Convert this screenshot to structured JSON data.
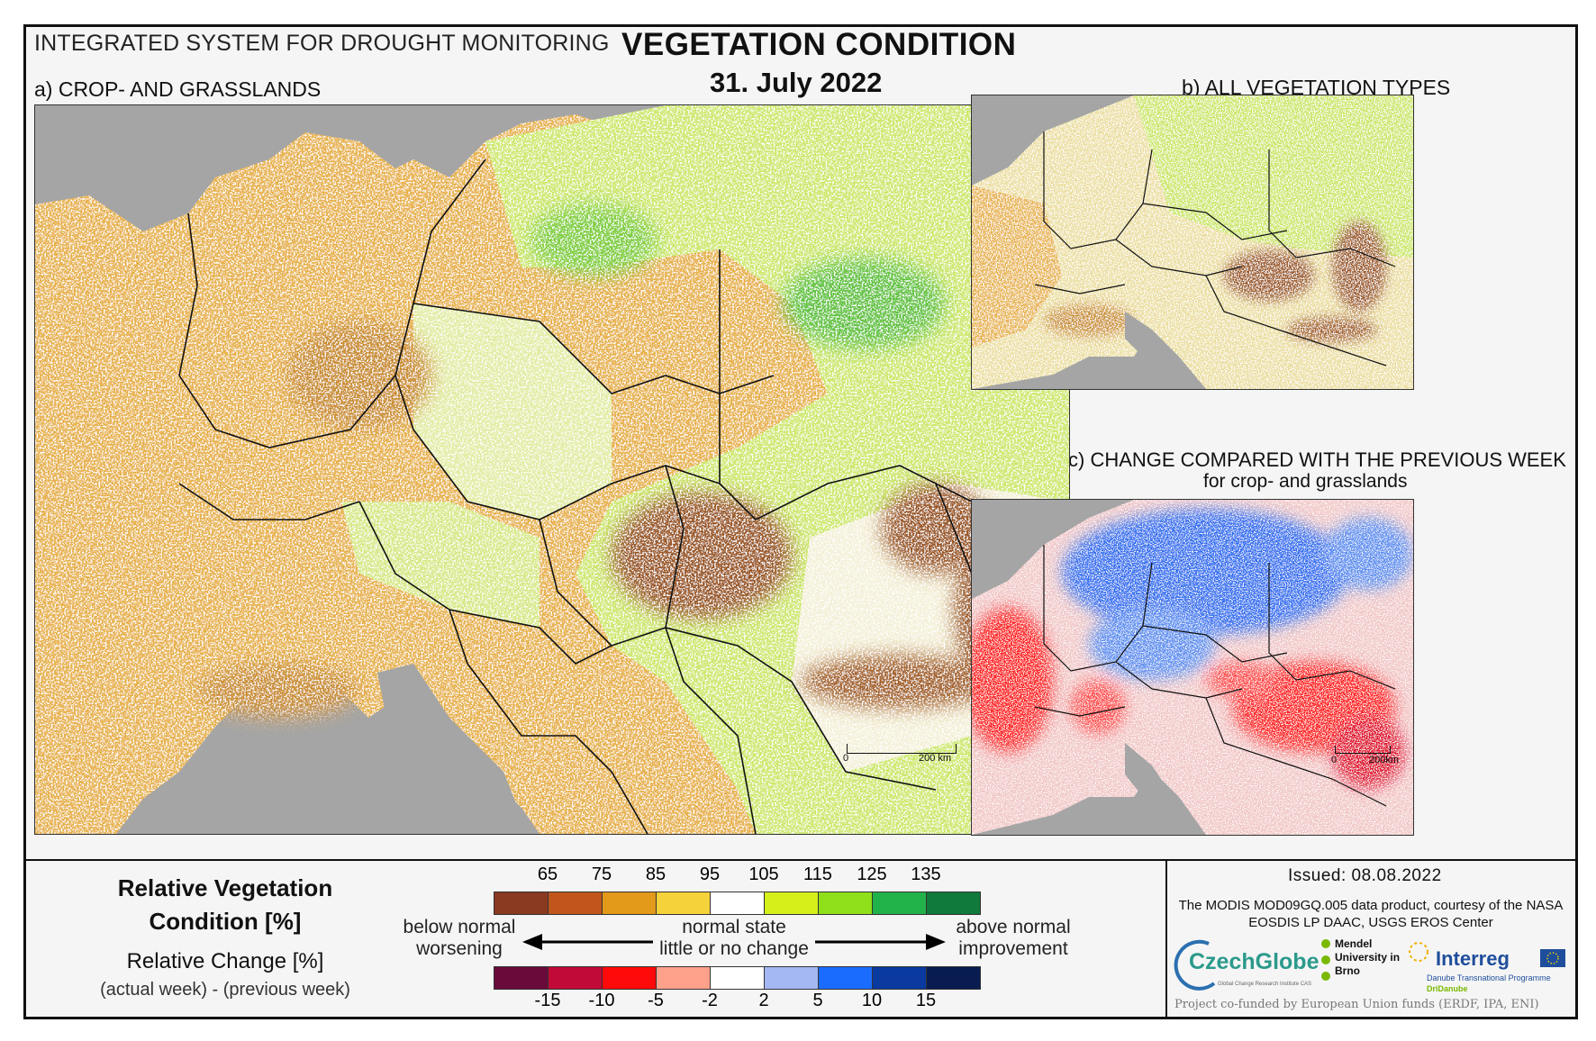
{
  "header": {
    "system": "INTEGRATED SYSTEM FOR DROUGHT MONITORING",
    "title": "VEGETATION CONDITION",
    "date": "31. July 2022"
  },
  "panels": {
    "a": "a) CROP- AND GRASSLANDS",
    "b": "b) ALL VEGETATION TYPES",
    "c_line1": "c) CHANGE COMPARED WITH THE PREVIOUS WEEK",
    "c_line2": "for crop- and grasslands"
  },
  "scale_bars": {
    "a": {
      "zero": "0",
      "end": "200 km"
    },
    "c": {
      "zero": "0",
      "end": "200km"
    }
  },
  "legend": {
    "rvc_title": "Relative Vegetation Condition [%]",
    "rvc_ticks": [
      "65",
      "75",
      "85",
      "95",
      "105",
      "115",
      "125",
      "135"
    ],
    "rvc_colors": [
      "#8b3a22",
      "#c0561c",
      "#e39a1a",
      "#f6d23a",
      "#ffffff",
      "#d4ef1a",
      "#8fe01a",
      "#22b24a",
      "#0f7a3c"
    ],
    "rc_title": "Relative Change [%]",
    "rc_subtitle": "(actual week) - (previous week)",
    "rc_ticks": [
      "-15",
      "-10",
      "-5",
      "-2",
      "2",
      "5",
      "10",
      "15"
    ],
    "rc_colors": [
      "#6a0a3a",
      "#c20a38",
      "#ff0a0a",
      "#ffa08a",
      "#ffffff",
      "#a4b8f4",
      "#1a6cff",
      "#0a3aa0",
      "#081c52"
    ],
    "left_upper": "below normal",
    "left_lower": "worsening",
    "center_upper": "normal state",
    "center_lower": "little or no change",
    "right_upper": "above normal",
    "right_lower": "improvement"
  },
  "footer": {
    "issued": "Issued: 08.08.2022",
    "credit": "The MODIS MOD09GQ.005 data product, courtesy of the NASA EOSDIS LP DAAC, USGS EROS Center",
    "czechglobe": "CzechGlobe",
    "czechglobe_sub": "Global Change Research Institute CAS",
    "mendel": "Mendel University in Brno",
    "interreg": "Interreg",
    "interreg_sub": "Danube Transnational Programme",
    "dridanube": "DriDanube",
    "funded": "Project co-funded by European Union funds (ERDF, IPA, ENI)"
  }
}
